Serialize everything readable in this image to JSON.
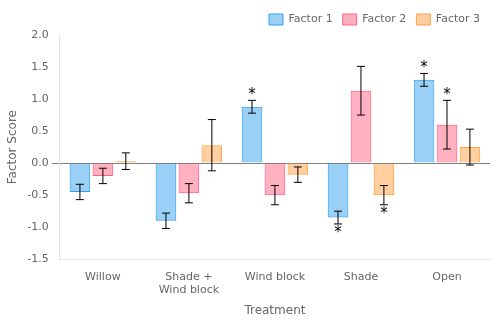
{
  "chart_data": {
    "type": "bar",
    "categories": [
      "Willow",
      "Shade +\nWind block",
      "Wind block",
      "Shade",
      "Open"
    ],
    "series": [
      {
        "name": "Factor 1",
        "values": [
          -0.45,
          -0.9,
          0.88,
          -0.85,
          1.3
        ],
        "errors": [
          0.12,
          0.12,
          0.1,
          0.1,
          0.1
        ]
      },
      {
        "name": "Factor 2",
        "values": [
          -0.2,
          -0.47,
          -0.5,
          1.13,
          0.6
        ],
        "errors": [
          0.12,
          0.15,
          0.15,
          0.38,
          0.38
        ]
      },
      {
        "name": "Factor 3",
        "values": [
          0.03,
          0.28,
          -0.18,
          -0.5,
          0.25
        ],
        "errors": [
          0.13,
          0.4,
          0.12,
          0.15,
          0.28
        ]
      }
    ],
    "xlabel": "Treatment",
    "ylabel": "Factor Score",
    "ylim": [
      -1.5,
      2.0
    ],
    "yticks": [
      -1.5,
      {
        "value": -1.0,
        "label": "-1.0"
      },
      -0.5,
      {
        "value": 0.0,
        "label": "0.0"
      },
      0.5,
      {
        "value": 1.0,
        "label": "1.0"
      },
      1.5,
      {
        "value": 2.0,
        "label": "2.0"
      }
    ],
    "grid": false,
    "legend": "upper right",
    "annotations": [
      {
        "text": "*",
        "category": "Wind block",
        "series": "Factor 1"
      },
      {
        "text": "*",
        "category": "Shade",
        "series": "Factor 1"
      },
      {
        "text": "*",
        "category": "Shade",
        "series": "Factor 3"
      },
      {
        "text": "*",
        "category": "Open",
        "series": "Factor 1"
      },
      {
        "text": "*",
        "category": "Open",
        "series": "Factor 2"
      }
    ]
  }
}
